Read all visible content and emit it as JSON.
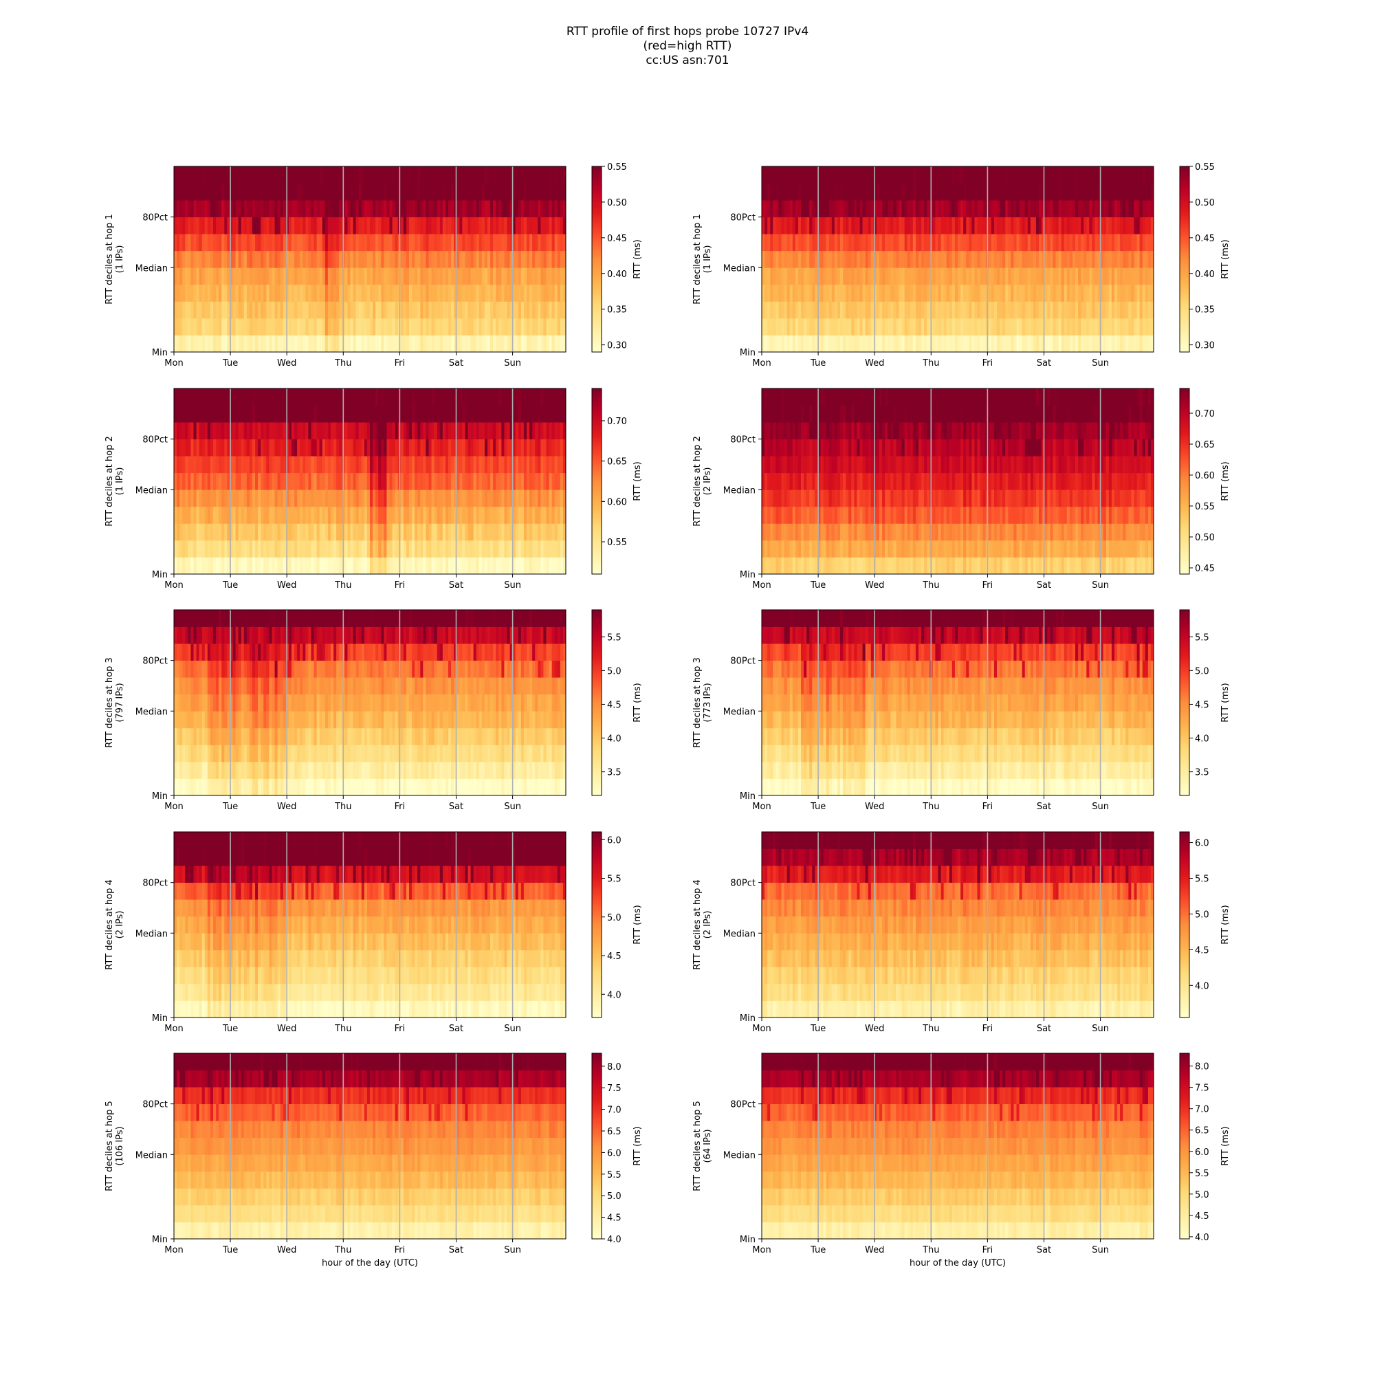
{
  "figure": {
    "title_lines": [
      "RTT profile of first hops probe 10727 IPv4",
      "(red=high RTT)",
      "cc:US asn:701"
    ],
    "xlabel": "hour of the day (UTC)"
  },
  "chart_data": [
    {
      "type": "heatmap",
      "hop": 1,
      "ylabel": [
        "RTT deciles at hop 1",
        "(1 IPs)"
      ],
      "x_ticks": [
        "Mon",
        "Tue",
        "Wed",
        "Thu",
        "Fri",
        "Sat",
        "Sun"
      ],
      "y_ticks": [
        "Min",
        "Median",
        "80Pct"
      ],
      "colorbar_label": "RTT (ms)",
      "colorbar_range": [
        0.29,
        0.55
      ],
      "colorbar_ticks": [
        "0.30",
        "0.35",
        "0.40",
        "0.45",
        "0.50",
        "0.55"
      ],
      "colorbar_tick_values": [
        0.3,
        0.35,
        0.4,
        0.45,
        0.5,
        0.55
      ],
      "decile_values": [
        0.31,
        0.355,
        0.37,
        0.385,
        0.4,
        0.425,
        0.455,
        0.485,
        0.53,
        0.56,
        0.56
      ],
      "noise": 0.022,
      "stripes": [
        [
          0.38,
          0.42,
          0.03
        ]
      ]
    },
    {
      "type": "heatmap",
      "hop": 1,
      "ylabel": [
        "RTT deciles at hop 1",
        "(1 IPs)"
      ],
      "x_ticks": [
        "Mon",
        "Tue",
        "Wed",
        "Thu",
        "Fri",
        "Sat",
        "Sun"
      ],
      "y_ticks": [
        "Min",
        "Median",
        "80Pct"
      ],
      "colorbar_label": "RTT (ms)",
      "colorbar_range": [
        0.29,
        0.55
      ],
      "colorbar_ticks": [
        "0.30",
        "0.35",
        "0.40",
        "0.45",
        "0.50",
        "0.55"
      ],
      "colorbar_tick_values": [
        0.3,
        0.35,
        0.4,
        0.45,
        0.5,
        0.55
      ],
      "decile_values": [
        0.31,
        0.355,
        0.37,
        0.385,
        0.4,
        0.425,
        0.455,
        0.485,
        0.53,
        0.56,
        0.56
      ],
      "noise": 0.02,
      "stripes": []
    },
    {
      "type": "heatmap",
      "hop": 2,
      "ylabel": [
        "RTT deciles at hop 2",
        "(1 IPs)"
      ],
      "x_ticks": [
        "Mon",
        "Tue",
        "Wed",
        "Thu",
        "Fri",
        "Sat",
        "Sun"
      ],
      "y_ticks": [
        "Min",
        "Median",
        "80Pct"
      ],
      "colorbar_label": "RTT (ms)",
      "colorbar_range": [
        0.51,
        0.74
      ],
      "colorbar_ticks": [
        "0.55",
        "0.60",
        "0.65",
        "0.70"
      ],
      "colorbar_tick_values": [
        0.55,
        0.6,
        0.65,
        0.7
      ],
      "decile_values": [
        0.52,
        0.56,
        0.58,
        0.6,
        0.62,
        0.645,
        0.66,
        0.68,
        0.7,
        0.75,
        0.75
      ],
      "noise": 0.02,
      "stripes": [
        [
          0.5,
          0.54,
          0.04
        ]
      ]
    },
    {
      "type": "heatmap",
      "hop": 2,
      "ylabel": [
        "RTT deciles at hop 2",
        "(2 IPs)"
      ],
      "x_ticks": [
        "Mon",
        "Tue",
        "Wed",
        "Thu",
        "Fri",
        "Sat",
        "Sun"
      ],
      "y_ticks": [
        "Min",
        "Median",
        "80Pct"
      ],
      "colorbar_label": "RTT (ms)",
      "colorbar_range": [
        0.44,
        0.74
      ],
      "colorbar_ticks": [
        "0.45",
        "0.50",
        "0.55",
        "0.60",
        "0.65",
        "0.70"
      ],
      "colorbar_tick_values": [
        0.45,
        0.5,
        0.55,
        0.6,
        0.65,
        0.7
      ],
      "decile_values": [
        0.52,
        0.56,
        0.59,
        0.62,
        0.645,
        0.665,
        0.685,
        0.7,
        0.72,
        0.75,
        0.75
      ],
      "noise": 0.025,
      "stripes": []
    },
    {
      "type": "heatmap",
      "hop": 3,
      "ylabel": [
        "RTT deciles at hop 3",
        "(797 IPs)"
      ],
      "x_ticks": [
        "Mon",
        "Tue",
        "Wed",
        "Thu",
        "Fri",
        "Sat",
        "Sun"
      ],
      "y_ticks": [
        "Min",
        "Median",
        "80Pct"
      ],
      "colorbar_label": "RTT (ms)",
      "colorbar_range": [
        3.15,
        5.9
      ],
      "colorbar_ticks": [
        "3.5",
        "4.0",
        "4.5",
        "5.0",
        "5.5"
      ],
      "colorbar_tick_values": [
        3.5,
        4.0,
        4.5,
        5.0,
        5.5
      ],
      "decile_values": [
        3.2,
        3.5,
        3.75,
        3.95,
        4.15,
        4.3,
        4.45,
        4.65,
        4.95,
        5.45,
        6.0
      ],
      "noise": 0.22,
      "stripes": [
        [
          0.08,
          0.28,
          0.35
        ]
      ]
    },
    {
      "type": "heatmap",
      "hop": 3,
      "ylabel": [
        "RTT deciles at hop 3",
        "(773 IPs)"
      ],
      "x_ticks": [
        "Mon",
        "Tue",
        "Wed",
        "Thu",
        "Fri",
        "Sat",
        "Sun"
      ],
      "y_ticks": [
        "Min",
        "Median",
        "80Pct"
      ],
      "colorbar_label": "RTT (ms)",
      "colorbar_range": [
        3.15,
        5.9
      ],
      "colorbar_ticks": [
        "3.5",
        "4.0",
        "4.5",
        "5.0",
        "5.5"
      ],
      "colorbar_tick_values": [
        3.5,
        4.0,
        4.5,
        5.0,
        5.5
      ],
      "decile_values": [
        3.2,
        3.5,
        3.75,
        3.95,
        4.15,
        4.3,
        4.45,
        4.65,
        4.95,
        5.45,
        6.0
      ],
      "noise": 0.22,
      "stripes": [
        [
          0.1,
          0.26,
          0.25
        ]
      ]
    },
    {
      "type": "heatmap",
      "hop": 4,
      "ylabel": [
        "RTT deciles at hop 4",
        "(2 IPs)"
      ],
      "x_ticks": [
        "Mon",
        "Tue",
        "Wed",
        "Thu",
        "Fri",
        "Sat",
        "Sun"
      ],
      "y_ticks": [
        "Min",
        "Median",
        "80Pct"
      ],
      "colorbar_label": "RTT (ms)",
      "colorbar_range": [
        3.7,
        6.1
      ],
      "colorbar_ticks": [
        "4.0",
        "4.5",
        "5.0",
        "5.5",
        "6.0"
      ],
      "colorbar_tick_values": [
        4.0,
        4.5,
        5.0,
        5.5,
        6.0
      ],
      "decile_values": [
        3.8,
        4.05,
        4.2,
        4.35,
        4.5,
        4.65,
        4.8,
        5.1,
        5.6,
        6.2,
        6.2
      ],
      "noise": 0.18,
      "stripes": [
        [
          0.08,
          0.28,
          0.2
        ]
      ]
    },
    {
      "type": "heatmap",
      "hop": 4,
      "ylabel": [
        "RTT deciles at hop 4",
        "(2 IPs)"
      ],
      "x_ticks": [
        "Mon",
        "Tue",
        "Wed",
        "Thu",
        "Fri",
        "Sat",
        "Sun"
      ],
      "y_ticks": [
        "Min",
        "Median",
        "80Pct"
      ],
      "colorbar_label": "RTT (ms)",
      "colorbar_range": [
        3.55,
        6.15
      ],
      "colorbar_ticks": [
        "4.0",
        "4.5",
        "5.0",
        "5.5",
        "6.0"
      ],
      "colorbar_tick_values": [
        4.0,
        4.5,
        5.0,
        5.5,
        6.0
      ],
      "decile_values": [
        3.8,
        4.1,
        4.25,
        4.4,
        4.55,
        4.7,
        4.85,
        5.0,
        5.5,
        5.9,
        6.2
      ],
      "noise": 0.2,
      "stripes": []
    },
    {
      "type": "heatmap",
      "hop": 5,
      "ylabel": [
        "RTT deciles at hop 5",
        "(106 IPs)"
      ],
      "x_ticks": [
        "Mon",
        "Tue",
        "Wed",
        "Thu",
        "Fri",
        "Sat",
        "Sun"
      ],
      "y_ticks": [
        "Min",
        "Median",
        "80Pct"
      ],
      "colorbar_label": "RTT (ms)",
      "colorbar_range": [
        4.0,
        8.3
      ],
      "colorbar_ticks": [
        "4.0",
        "4.5",
        "5.0",
        "5.5",
        "6.0",
        "6.5",
        "7.0",
        "7.5",
        "8.0"
      ],
      "colorbar_tick_values": [
        4.0,
        4.5,
        5.0,
        5.5,
        6.0,
        6.5,
        7.0,
        7.5,
        8.0
      ],
      "decile_values": [
        4.4,
        4.9,
        5.2,
        5.5,
        5.75,
        6.0,
        6.2,
        6.5,
        7.0,
        7.9,
        8.4
      ],
      "noise": 0.25,
      "stripes": []
    },
    {
      "type": "heatmap",
      "hop": 5,
      "ylabel": [
        "RTT deciles at hop 5",
        "(64 IPs)"
      ],
      "x_ticks": [
        "Mon",
        "Tue",
        "Wed",
        "Thu",
        "Fri",
        "Sat",
        "Sun"
      ],
      "y_ticks": [
        "Min",
        "Median",
        "80Pct"
      ],
      "colorbar_label": "RTT (ms)",
      "colorbar_range": [
        3.95,
        8.3
      ],
      "colorbar_ticks": [
        "4.0",
        "4.5",
        "5.0",
        "5.5",
        "6.0",
        "6.5",
        "7.0",
        "7.5",
        "8.0"
      ],
      "colorbar_tick_values": [
        4.0,
        4.5,
        5.0,
        5.5,
        6.0,
        6.5,
        7.0,
        7.5,
        8.0
      ],
      "decile_values": [
        4.4,
        4.9,
        5.2,
        5.5,
        5.75,
        6.0,
        6.2,
        6.5,
        7.0,
        7.9,
        8.4
      ],
      "noise": 0.25,
      "stripes": []
    }
  ]
}
